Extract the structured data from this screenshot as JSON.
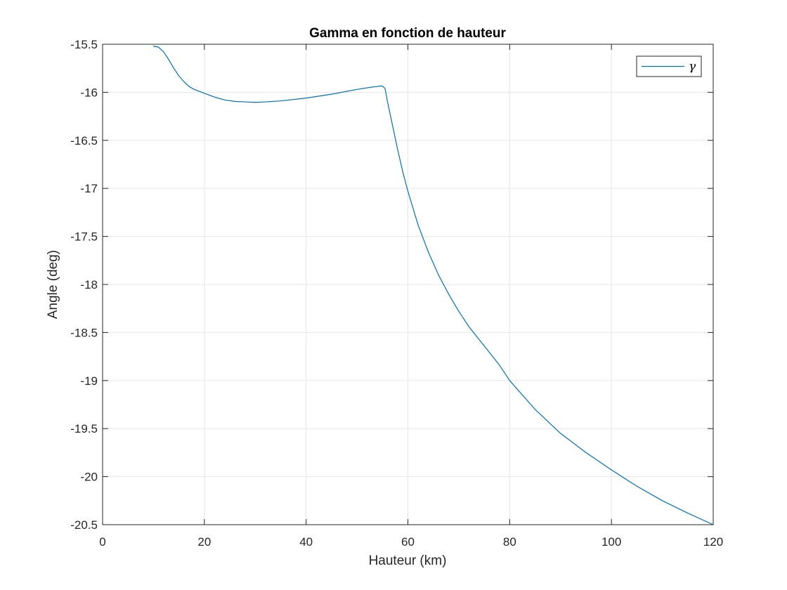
{
  "chart_data": {
    "type": "line",
    "title": "Gamma en fonction de hauteur",
    "xlabel": "Hauteur (km)",
    "ylabel": "Angle (deg)",
    "xlim": [
      0,
      120
    ],
    "ylim": [
      -20.5,
      -15.5
    ],
    "xticks": [
      0,
      20,
      40,
      60,
      80,
      100,
      120
    ],
    "xtick_labels": [
      "0",
      "20",
      "40",
      "60",
      "80",
      "100",
      "120"
    ],
    "yticks": [
      -20.5,
      -20,
      -19.5,
      -19,
      -18.5,
      -18,
      -17.5,
      -17,
      -16.5,
      -16,
      -15.5
    ],
    "ytick_labels": [
      "-20.5",
      "-20",
      "-19.5",
      "-19",
      "-18.5",
      "-18",
      "-17.5",
      "-17",
      "-16.5",
      "-16",
      "-15.5"
    ],
    "grid": true,
    "legend_position": "top-right",
    "colors": {
      "series": "#0072bd",
      "grid": "#e6e6e6",
      "axes": "#262626"
    },
    "series": [
      {
        "name": "γ",
        "x": [
          10,
          11,
          12,
          13,
          14,
          15,
          16,
          17,
          18,
          19,
          20,
          22,
          24,
          26,
          28,
          30,
          32,
          35,
          40,
          45,
          50,
          53,
          54,
          54.5,
          55,
          55.5,
          56,
          57,
          58,
          59,
          60,
          62,
          64,
          66,
          68,
          70,
          72,
          75,
          78,
          80,
          85,
          90,
          95,
          100,
          105,
          110,
          115,
          120
        ],
        "y": [
          -15.52,
          -15.53,
          -15.58,
          -15.66,
          -15.75,
          -15.83,
          -15.89,
          -15.94,
          -15.97,
          -15.99,
          -16.01,
          -16.05,
          -16.08,
          -16.095,
          -16.1,
          -16.105,
          -16.1,
          -16.09,
          -16.06,
          -16.02,
          -15.97,
          -15.945,
          -15.94,
          -15.935,
          -15.935,
          -15.96,
          -16.1,
          -16.35,
          -16.6,
          -16.83,
          -17.03,
          -17.38,
          -17.66,
          -17.9,
          -18.1,
          -18.28,
          -18.44,
          -18.64,
          -18.84,
          -19.0,
          -19.3,
          -19.55,
          -19.75,
          -19.93,
          -20.1,
          -20.25,
          -20.38,
          -20.5
        ]
      }
    ]
  }
}
